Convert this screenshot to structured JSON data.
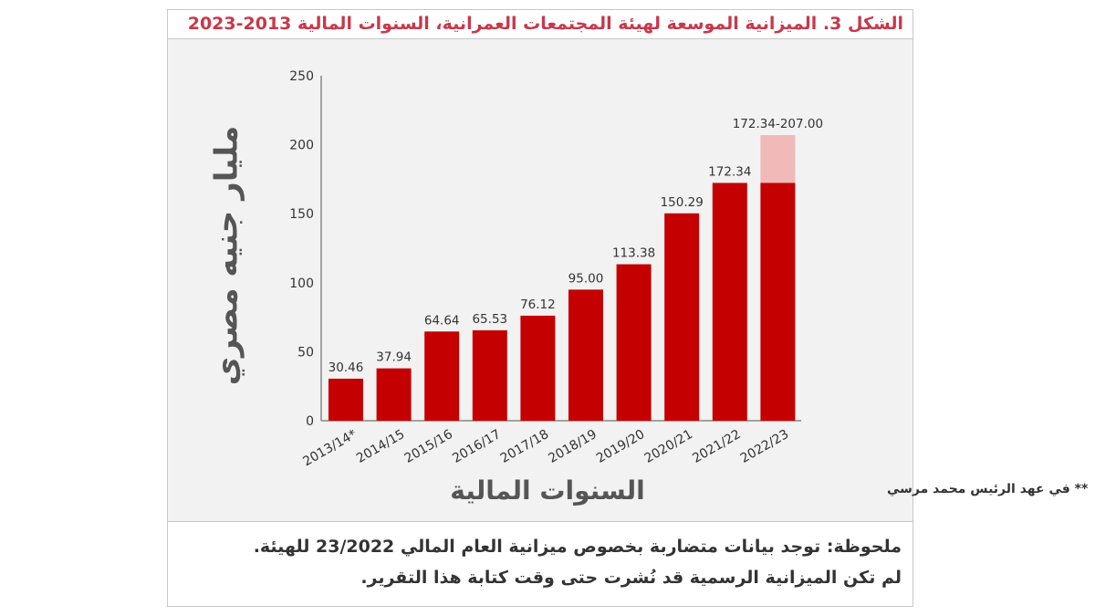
{
  "title": "الشكل 3. الميزانية الموسعة لهيئة المجتمعات العمرانية، السنوات المالية 2013-2023",
  "note": {
    "line1": "ملحوظة: توجد بيانات متضاربة بخصوص ميزانية العام المالي 23/2022 للهيئة.",
    "line2": "لم تكن الميزانية الرسمية قد نُشرت حتى وقت كتابة هذا التقرير."
  },
  "footnote": "** في عهد الرئيس محمد مرسي",
  "colors": {
    "bar": "#c40000",
    "range": "#f2b9b9"
  },
  "chart_data": {
    "type": "bar",
    "title": "الشكل 3. الميزانية الموسعة لهيئة المجتمعات العمرانية، السنوات المالية 2013-2023",
    "xlabel": "السنوات المالية",
    "ylabel": "مليار جنيه مصري",
    "ylim": [
      0,
      250
    ],
    "yticks": [
      "0",
      "50",
      "100",
      "150",
      "200",
      "250"
    ],
    "categories": [
      "2013/14*",
      "2014/15",
      "2015/16",
      "2016/17",
      "2017/18",
      "2018/19",
      "2019/20",
      "2020/21",
      "2021/22",
      "2022/23"
    ],
    "values": [
      30.46,
      37.94,
      64.64,
      65.53,
      76.12,
      95.0,
      113.38,
      150.29,
      172.34,
      172.34
    ],
    "labels": [
      "30.46",
      "37.94",
      "64.64",
      "65.53",
      "76.12",
      "95.00",
      "113.38",
      "150.29",
      "172.34",
      "172.34-207.00"
    ],
    "range_upper": [
      null,
      null,
      null,
      null,
      null,
      null,
      null,
      null,
      null,
      207.0
    ],
    "grid": false
  }
}
